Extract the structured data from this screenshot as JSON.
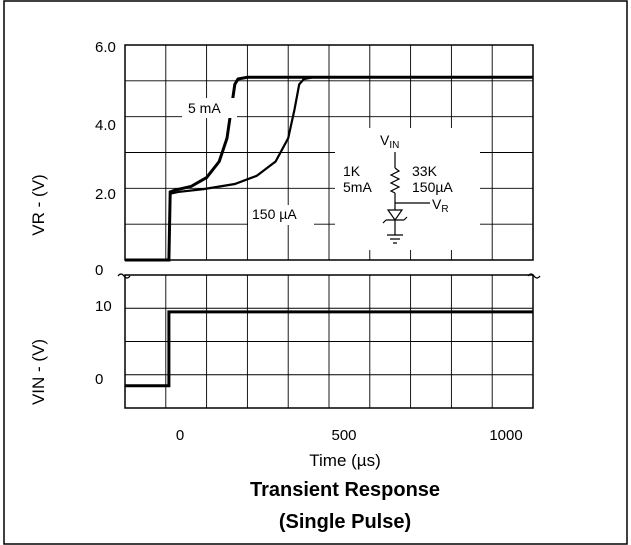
{
  "chart_data": [
    {
      "type": "line",
      "title": "Transient Response",
      "subtitle": "(Single Pulse)",
      "xlabel": "Time (µs)",
      "ylabel": "VR - (V)",
      "xlim": [
        -150,
        1150
      ],
      "ylim": [
        0,
        6
      ],
      "grid": true,
      "x_ticks": [
        "0",
        "500",
        "1000"
      ],
      "y_ticks": [
        "6.0",
        "4.0",
        "2.0",
        "0"
      ],
      "series": [
        {
          "name": "5 mA",
          "points": [
            [
              -150,
              0
            ],
            [
              -10,
              0
            ],
            [
              -6,
              1.9
            ],
            [
              10,
              1.95
            ],
            [
              60,
              2.05
            ],
            [
              110,
              2.3
            ],
            [
              150,
              2.75
            ],
            [
              175,
              3.4
            ],
            [
              190,
              4.3
            ],
            [
              200,
              4.9
            ],
            [
              210,
              5.05
            ],
            [
              240,
              5.1
            ],
            [
              1150,
              5.1
            ]
          ]
        },
        {
          "name": "150 µA",
          "points": [
            [
              -150,
              0
            ],
            [
              -10,
              0
            ],
            [
              -6,
              1.85
            ],
            [
              20,
              1.9
            ],
            [
              100,
              1.98
            ],
            [
              200,
              2.12
            ],
            [
              270,
              2.35
            ],
            [
              330,
              2.75
            ],
            [
              370,
              3.4
            ],
            [
              390,
              4.2
            ],
            [
              405,
              4.9
            ],
            [
              420,
              5.05
            ],
            [
              450,
              5.1
            ],
            [
              1150,
              5.1
            ]
          ]
        }
      ],
      "annotations": [
        "5 mA",
        "150 µA"
      ]
    },
    {
      "type": "line",
      "xlabel": "",
      "ylabel": "VIN - (V)",
      "xlim": [
        -150,
        1150
      ],
      "ylim": [
        -3,
        15
      ],
      "y_ticks": [
        "10",
        "0"
      ],
      "series": [
        {
          "points": [
            [
              -150,
              0
            ],
            [
              -10,
              0
            ],
            [
              -10,
              10
            ],
            [
              1150,
              10
            ]
          ]
        }
      ]
    }
  ],
  "circuit_labels": {
    "vin": "V",
    "vin_sub": "IN",
    "r1": "1K",
    "i1": "5mA",
    "r2": "33K",
    "i2": "150µA",
    "vr": "V",
    "vr_sub": "R"
  }
}
